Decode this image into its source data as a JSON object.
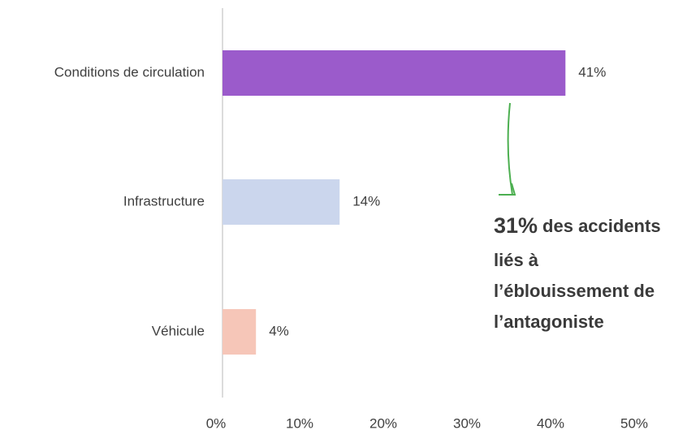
{
  "chart_data": {
    "type": "barh",
    "categories": [
      "Conditions de circulation",
      "Infrastructure",
      "Véhicule"
    ],
    "values": [
      41,
      14,
      4
    ],
    "value_labels": [
      "41%",
      "14%",
      "4%"
    ],
    "colors": [
      "#9b5bcb",
      "#cbd6ed",
      "#f6c6b8"
    ],
    "xlim": [
      0,
      50
    ],
    "xticks": [
      {
        "value": 0,
        "label": "0%"
      },
      {
        "value": 10,
        "label": "10%"
      },
      {
        "value": 20,
        "label": "20%"
      },
      {
        "value": 30,
        "label": "30%"
      },
      {
        "value": 40,
        "label": "40%"
      },
      {
        "value": 50,
        "label": "50%"
      }
    ],
    "annotation": {
      "highlight": "31%",
      "lines": [
        "des accidents",
        "liés à",
        "l’éblouissement de",
        "l’antagoniste"
      ]
    }
  }
}
